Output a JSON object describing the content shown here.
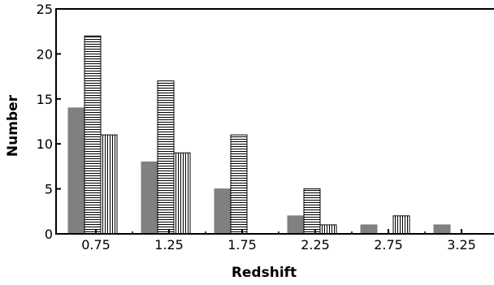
{
  "chart_data": {
    "type": "bar",
    "title": "",
    "xlabel": "Redshift",
    "ylabel": "Number",
    "categories": [
      "0.75",
      "1.25",
      "1.75",
      "2.25",
      "2.75",
      "3.25"
    ],
    "ylim": [
      0,
      25
    ],
    "yticks": [
      0,
      5,
      10,
      15,
      20,
      25
    ],
    "grid": false,
    "legend": "none",
    "series": [
      {
        "values": [
          14,
          8,
          5,
          2,
          1,
          1
        ],
        "pattern": "solid",
        "color": "#808080"
      },
      {
        "values": [
          22,
          17,
          11,
          5,
          0,
          0
        ],
        "pattern": "horizontal-lines",
        "color": "#000000"
      },
      {
        "values": [
          11,
          9,
          0,
          1,
          2,
          0
        ],
        "pattern": "vertical-lines",
        "color": "#000000"
      }
    ]
  }
}
